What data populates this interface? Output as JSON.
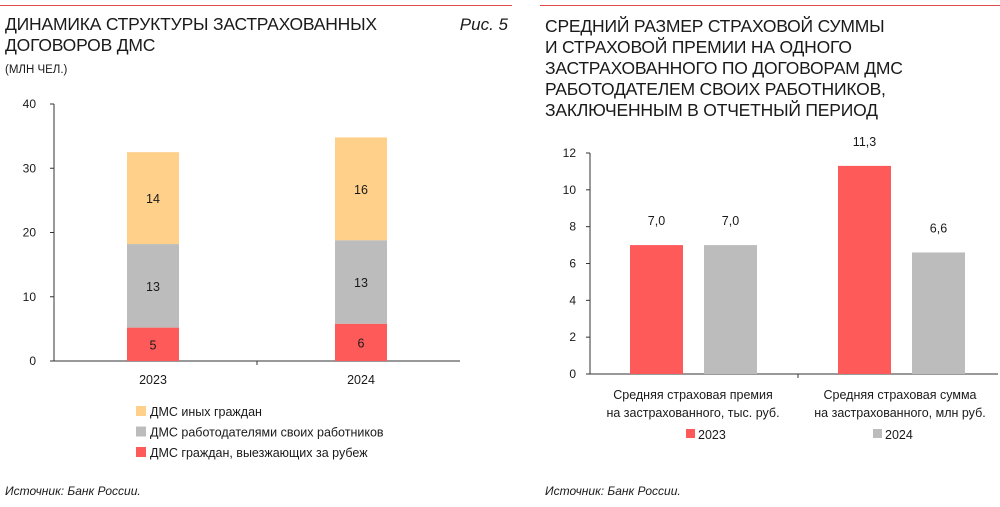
{
  "colors": {
    "abroad": "#ff5a5a",
    "employer": "#bcbcbc",
    "other": "#ffd08a",
    "accent_line": "#e04a4a",
    "axis": "#333333"
  },
  "left": {
    "title_line1": "ДИНАМИКА СТРУКТУРЫ ЗАСТРАХОВАННЫХ",
    "title_line2": "ДОГОВОРОВ ДМС",
    "subtitle": "(МЛН ЧЕЛ.)",
    "fig_label": "Рис. 5",
    "source": "Источник: Банк России."
  },
  "right": {
    "title_lines": [
      "СРЕДНИЙ РАЗМЕР СТРАХОВОЙ СУММЫ",
      "И СТРАХОВОЙ ПРЕМИИ НА ОДНОГО",
      "ЗАСТРАХОВАННОГО ПО ДОГОВОРАМ ДМС",
      "РАБОТОДАТЕЛЕМ СВОИХ РАБОТНИКОВ,",
      "ЗАКЛЮЧЕННЫМ В ОТЧЕТНЫЙ ПЕРИОД"
    ],
    "source": "Источник: Банк России."
  },
  "chart_data": [
    {
      "type": "bar",
      "stacked": true,
      "title": "ДИНАМИКА СТРУКТУРЫ ЗАСТРАХОВАННЫХ ДОГОВОРОВ ДМС",
      "ylabel": "МЛН ЧЕЛ.",
      "categories": [
        "2023",
        "2024"
      ],
      "ylim": [
        0,
        40
      ],
      "yticks": [
        0,
        10,
        20,
        30,
        40
      ],
      "legend_position": "bottom",
      "series": [
        {
          "name": "ДМС граждан, выезжающих за рубеж",
          "values": [
            5,
            6
          ],
          "segment_values": [
            5.2,
            5.8
          ],
          "color": "#ff5a5a"
        },
        {
          "name": "ДМС работодателями своих работников",
          "values": [
            13,
            13
          ],
          "segment_values": [
            13.0,
            13.0
          ],
          "color": "#bcbcbc"
        },
        {
          "name": "ДМС иных граждан",
          "values": [
            14,
            16
          ],
          "segment_values": [
            14.3,
            16.0
          ],
          "color": "#ffd08a"
        }
      ],
      "legend_order": [
        "ДМС иных граждан",
        "ДМС работодателями своих работников",
        "ДМС граждан, выезжающих за рубеж"
      ]
    },
    {
      "type": "bar",
      "stacked": false,
      "categories": [
        "Средняя страховая премия|на застрахованного, тыс. руб.",
        "Средняя страховая сумма|на застрахованного, млн руб."
      ],
      "ylim": [
        0,
        12
      ],
      "yticks": [
        0,
        2,
        4,
        6,
        8,
        10,
        12
      ],
      "legend_position": "bottom",
      "series": [
        {
          "name": "2023",
          "values": [
            7.0,
            11.3
          ],
          "labels": [
            "7,0",
            "11,3"
          ],
          "color": "#ff5a5a"
        },
        {
          "name": "2024",
          "values": [
            7.0,
            6.6
          ],
          "labels": [
            "7,0",
            "6,6"
          ],
          "color": "#bcbcbc"
        }
      ]
    }
  ]
}
